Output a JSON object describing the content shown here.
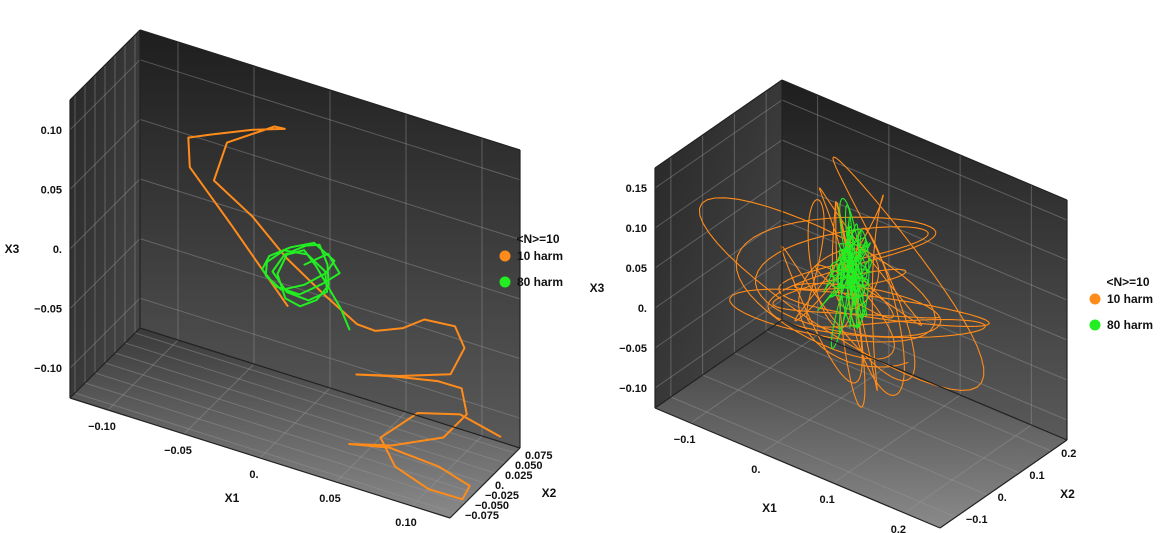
{
  "chart_data": [
    {
      "type": "line",
      "projection": "3d",
      "xlabel": "X1",
      "ylabel": "X2",
      "zlabel": "X3",
      "xlim": [
        -0.1,
        0.1
      ],
      "ylim": [
        -0.08,
        0.08
      ],
      "zlim": [
        -0.12,
        0.12
      ],
      "x_ticks": [
        "−0.10",
        "−0.05",
        "0.",
        "0.05",
        "0.10"
      ],
      "y_ticks": [
        "−0.075",
        "−0.050",
        "−0.025",
        "0.",
        "0.025",
        "0.050",
        "0.075"
      ],
      "z_ticks": [
        "−0.10",
        "−0.05",
        "0.",
        "0.05",
        "0.10"
      ],
      "legend": {
        "title": "<N>=10",
        "placement": "right"
      },
      "series": [
        {
          "name": "10 harm",
          "color": "#ff8c1a",
          "points": [
            [
              -0.02,
              0.07,
              -0.06
            ],
            [
              -0.045,
              0.05,
              0.0
            ],
            [
              -0.06,
              0.02,
              0.05
            ],
            [
              -0.055,
              -0.005,
              0.085
            ],
            [
              -0.04,
              -0.02,
              0.1
            ],
            [
              -0.02,
              -0.01,
              0.11
            ],
            [
              -0.01,
              0.02,
              0.105
            ],
            [
              -0.02,
              0.04,
              0.095
            ],
            [
              -0.045,
              0.04,
              0.07
            ],
            [
              -0.045,
              0.01,
              0.05
            ],
            [
              -0.02,
              -0.01,
              0.04
            ],
            [
              0.0,
              -0.02,
              0.02
            ],
            [
              0.02,
              -0.02,
              0.0
            ],
            [
              0.035,
              -0.01,
              -0.02
            ],
            [
              0.04,
              0.01,
              -0.03
            ],
            [
              0.05,
              0.03,
              -0.03
            ],
            [
              0.06,
              0.035,
              -0.02
            ],
            [
              0.075,
              0.04,
              -0.02
            ],
            [
              0.08,
              0.04,
              -0.035
            ],
            [
              0.075,
              0.03,
              -0.055
            ],
            [
              0.05,
              0.02,
              -0.065
            ],
            [
              0.03,
              0.01,
              -0.07
            ],
            [
              0.05,
              0.005,
              -0.06
            ],
            [
              0.075,
              0.0,
              -0.05
            ],
            [
              0.09,
              -0.01,
              -0.045
            ],
            [
              0.095,
              -0.02,
              -0.06
            ],
            [
              0.085,
              -0.03,
              -0.08
            ],
            [
              0.06,
              -0.04,
              -0.095
            ],
            [
              0.04,
              -0.05,
              -0.1
            ],
            [
              0.06,
              -0.045,
              -0.095
            ],
            [
              0.085,
              -0.04,
              -0.1
            ],
            [
              0.1,
              -0.035,
              -0.11
            ],
            [
              0.095,
              -0.03,
              -0.125
            ],
            [
              0.075,
              -0.02,
              -0.13
            ],
            [
              0.055,
              -0.01,
              -0.125
            ],
            [
              0.045,
              0.0,
              -0.11
            ],
            [
              0.06,
              0.02,
              -0.09
            ],
            [
              0.08,
              0.03,
              -0.085
            ],
            [
              0.1,
              0.035,
              -0.095
            ]
          ]
        },
        {
          "name": "80 harm",
          "color": "#22ee22",
          "points": [
            [
              0.005,
              0.0,
              0.01
            ],
            [
              0.015,
              0.01,
              0.02
            ],
            [
              0.02,
              0.015,
              0.005
            ],
            [
              0.01,
              0.02,
              -0.01
            ],
            [
              0.0,
              0.01,
              -0.02
            ],
            [
              -0.01,
              0.0,
              -0.015
            ],
            [
              -0.015,
              -0.01,
              0.0
            ],
            [
              -0.01,
              -0.015,
              0.015
            ],
            [
              0.0,
              -0.01,
              0.025
            ],
            [
              0.01,
              0.0,
              0.03
            ],
            [
              0.018,
              0.012,
              0.015
            ],
            [
              0.012,
              0.018,
              0.0
            ],
            [
              0.002,
              0.012,
              -0.012
            ],
            [
              -0.008,
              0.004,
              -0.018
            ],
            [
              -0.014,
              -0.006,
              -0.006
            ],
            [
              -0.012,
              -0.012,
              0.008
            ],
            [
              -0.004,
              -0.008,
              0.02
            ],
            [
              0.006,
              0.002,
              0.018
            ],
            [
              0.014,
              0.008,
              0.006
            ],
            [
              0.016,
              0.004,
              -0.008
            ],
            [
              0.008,
              -0.004,
              -0.016
            ],
            [
              -0.002,
              -0.01,
              -0.012
            ],
            [
              -0.01,
              -0.008,
              0.0
            ],
            [
              -0.006,
              0.002,
              0.012
            ],
            [
              0.004,
              0.008,
              0.022
            ],
            [
              0.012,
              0.004,
              0.028
            ],
            [
              0.018,
              -0.004,
              0.018
            ],
            [
              0.02,
              -0.01,
              0.004
            ],
            [
              0.014,
              -0.012,
              -0.01
            ],
            [
              0.004,
              -0.006,
              -0.022
            ],
            [
              -0.006,
              0.004,
              -0.024
            ],
            [
              -0.012,
              0.012,
              -0.01
            ],
            [
              -0.008,
              0.016,
              0.006
            ],
            [
              0.002,
              0.012,
              0.016
            ],
            [
              0.01,
              0.004,
              0.01
            ],
            [
              0.024,
              0.0,
              -0.016
            ],
            [
              0.03,
              -0.006,
              -0.028
            ]
          ]
        }
      ]
    },
    {
      "type": "line",
      "projection": "3d",
      "xlabel": "X1",
      "ylabel": "X2",
      "zlabel": "X3",
      "xlim": [
        -0.15,
        0.25
      ],
      "ylim": [
        -0.13,
        0.25
      ],
      "zlim": [
        -0.13,
        0.18
      ],
      "x_ticks": [
        "−0.1",
        "0.",
        "0.1",
        "0.2"
      ],
      "y_ticks": [
        "−0.1",
        "0.",
        "0.1",
        "0.2"
      ],
      "z_ticks": [
        "−0.10",
        "−0.05",
        "0.",
        "0.05",
        "0.10",
        "0.15"
      ],
      "legend": {
        "title": "<N>=10",
        "placement": "right"
      },
      "series": [
        {
          "name": "10 harm",
          "color": "#ff8c1a",
          "description_points": "dense tangled trajectory"
        },
        {
          "name": "80 harm",
          "color": "#22ee22",
          "description_points": "dense central cluster"
        }
      ]
    }
  ]
}
